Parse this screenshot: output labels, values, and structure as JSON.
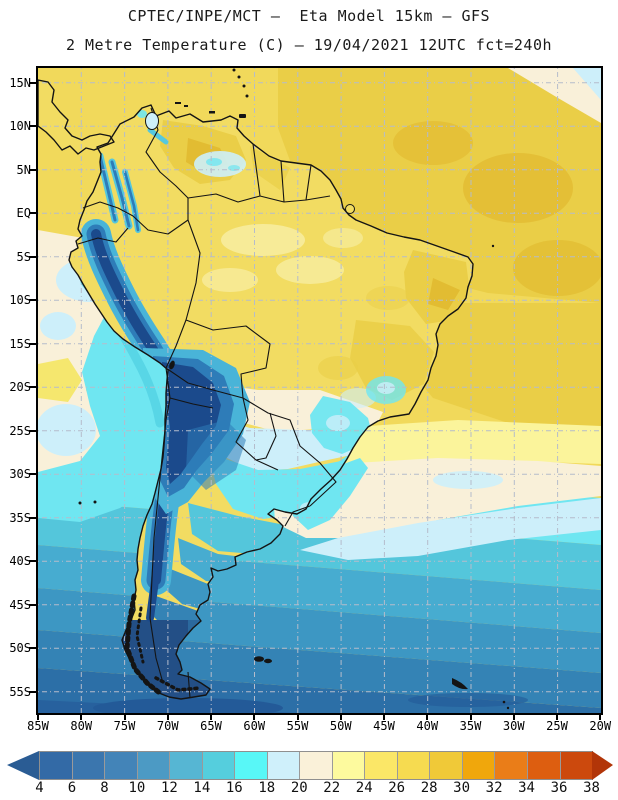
{
  "header": {
    "title_line1": "CPTEC/INPE/MCT –  Eta Model 15km – GFS",
    "title_line2": "2 Metre Temperature (C) – 19/04/2021 12UTC fct=240h"
  },
  "map": {
    "lat_labels": [
      "15N",
      "10N",
      "5N",
      "EQ",
      "5S",
      "10S",
      "15S",
      "20S",
      "25S",
      "30S",
      "35S",
      "40S",
      "45S",
      "50S",
      "55S"
    ],
    "lon_labels": [
      "85W",
      "80W",
      "75W",
      "70W",
      "65W",
      "60W",
      "55W",
      "50W",
      "45W",
      "40W",
      "35W",
      "30W",
      "25W",
      "20W"
    ]
  },
  "colorbar": {
    "tick_labels": [
      "4",
      "6",
      "8",
      "10",
      "12",
      "14",
      "16",
      "18",
      "20",
      "22",
      "24",
      "26",
      "28",
      "30",
      "32",
      "34",
      "36",
      "38"
    ],
    "segment_colors": [
      "#336AA6",
      "#3B76AE",
      "#4384B8",
      "#4C9AC4",
      "#56B6D3",
      "#55CEDD",
      "#58F7F7",
      "#CFF0FB",
      "#FAF1D9",
      "#FDFA9E",
      "#FBE767",
      "#F6DB50",
      "#F0C938",
      "#F0A70C",
      "#EA7D18",
      "#DD5E10",
      "#CC490D"
    ],
    "below_range_color": "#2A5C94",
    "above_range_color": "#B23508",
    "units": "C"
  },
  "palette": {
    "ocean_yellow": "#F1D95B",
    "gold": "#EACE47",
    "gold_deep": "#E2BC32",
    "land_yellow": "#F2DC62",
    "pale_yellow": "#F7EC9E",
    "pale_yellow_band": "#FBF49B",
    "warm_patch": "#F5E76E",
    "cream": "#F9F0D9",
    "pale_cyan": "#CDEFFA",
    "cyan": "#6FE6F1",
    "cyan_deep": "#55D2E4",
    "teal": "#54C6DB",
    "teal2": "#47ACD0",
    "blue1": "#3D97C3",
    "blue2": "#3483B5",
    "blue3": "#2C6FA7",
    "blue4": "#27619E",
    "blue_dark": "#235A98",
    "land_dark": "#234F86",
    "andes_outer": "#49B4D8",
    "andes_mid": "#2E7CB8",
    "andes_core": "#1B4A8C",
    "finger_outer": "#55C8DE",
    "finger_core": "#2E7CB8",
    "grid": "#B5BCCB",
    "coast": "#141414"
  }
}
